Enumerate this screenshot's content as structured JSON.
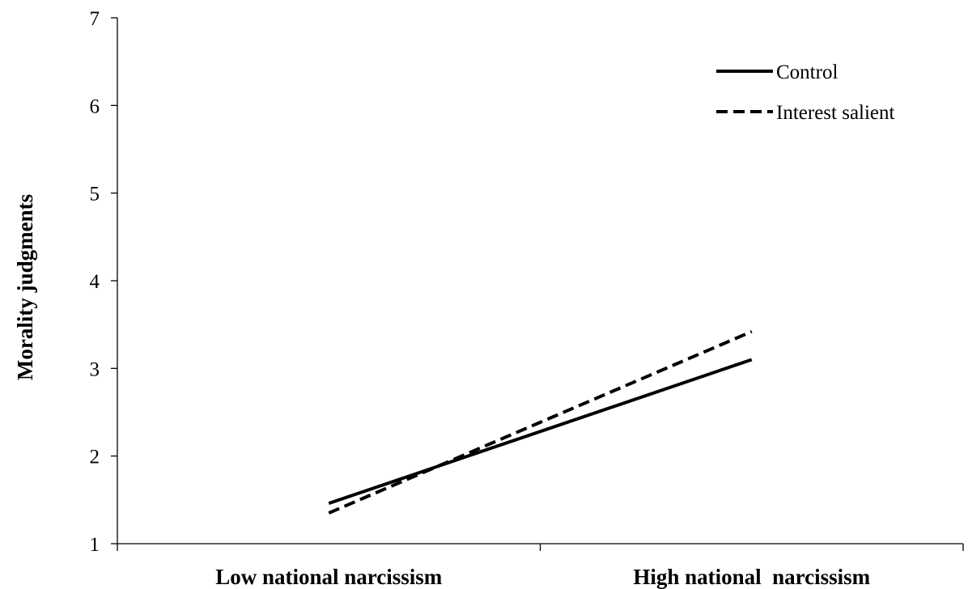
{
  "chart_data": {
    "type": "line",
    "title": "",
    "xlabel": "",
    "ylabel": "Morality judgments",
    "categories": [
      "Low national narcissism",
      "High national  narcissism"
    ],
    "ylim": [
      1,
      7
    ],
    "yticks": [
      1,
      2,
      3,
      4,
      5,
      6,
      7
    ],
    "grid": false,
    "legend_position": "top-right",
    "series": [
      {
        "name": "Control",
        "style": "solid",
        "color": "#000000",
        "values": [
          1.46,
          3.1
        ]
      },
      {
        "name": "Interest salient",
        "style": "dashed",
        "color": "#000000",
        "values": [
          1.35,
          3.42
        ]
      }
    ]
  }
}
